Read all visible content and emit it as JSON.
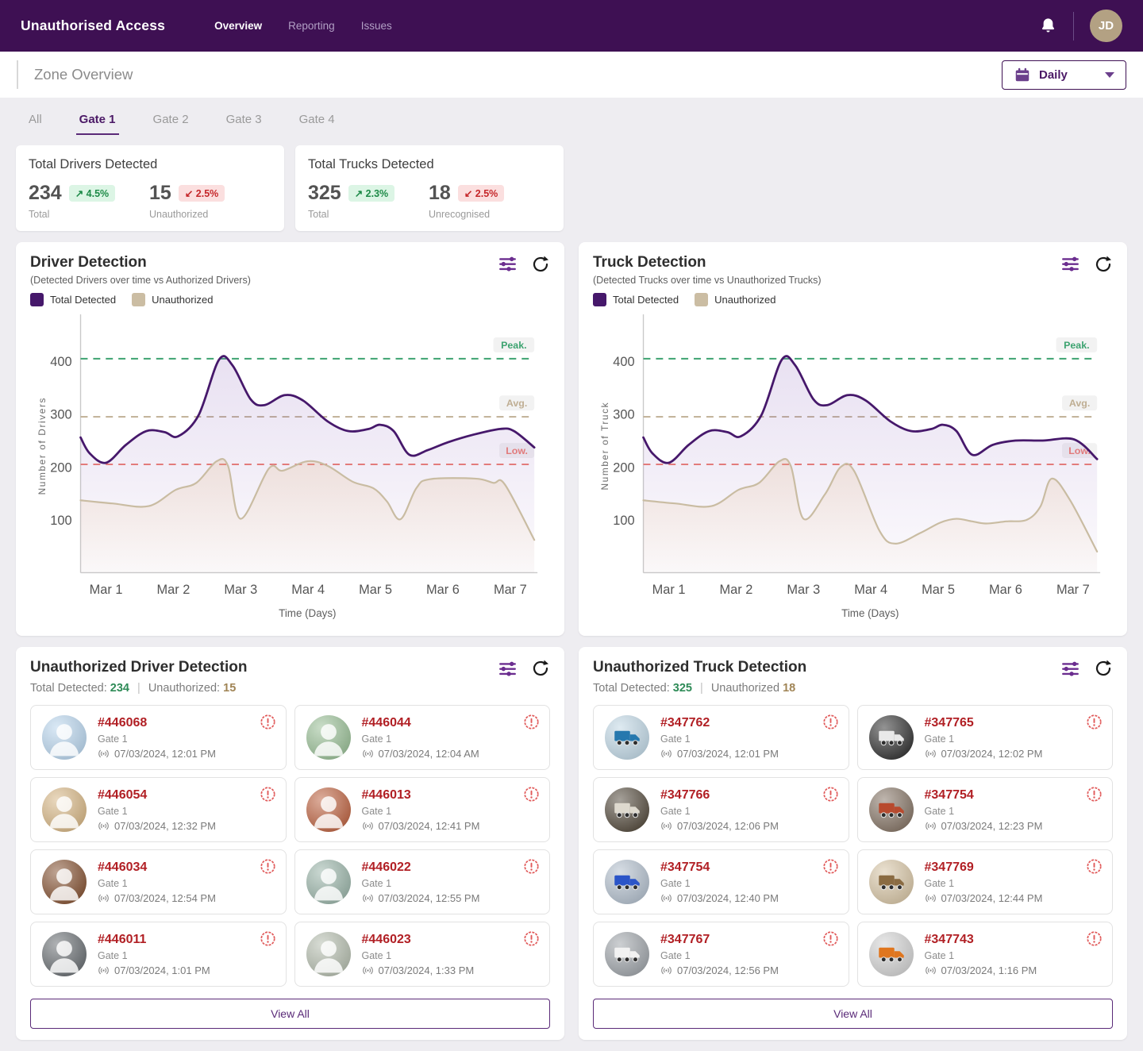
{
  "colors": {
    "navbar": "#3e1053",
    "accent_purple": "#5a2a78",
    "positive_green": "#1d8a47",
    "negative_red": "#c5272a",
    "entry_id_red": "#b11f24"
  },
  "navbar": {
    "title": "Unauthorised Access",
    "links": [
      {
        "label": "Overview"
      },
      {
        "label": "Reporting"
      },
      {
        "label": "Issues"
      }
    ],
    "avatar_initials": "JD"
  },
  "zone": {
    "title": "Zone Overview",
    "period_selector": {
      "value": "Daily"
    }
  },
  "tabs": [
    {
      "label": "All"
    },
    {
      "label": "Gate 1"
    },
    {
      "label": "Gate 2"
    },
    {
      "label": "Gate 3"
    },
    {
      "label": "Gate 4"
    }
  ],
  "active_tab": "Gate 1",
  "stats": [
    {
      "title": "Total Drivers Detected",
      "metrics": [
        {
          "value": "234",
          "delta": "4.5%",
          "direction": "up",
          "label": "Total"
        },
        {
          "value": "15",
          "delta": "2.5%",
          "direction": "down",
          "label": "Unauthorized"
        }
      ]
    },
    {
      "title": "Total Trucks Detected",
      "metrics": [
        {
          "value": "325",
          "delta": "2.3%",
          "direction": "up",
          "label": "Total"
        },
        {
          "value": "18",
          "delta": "2.5%",
          "direction": "down",
          "label": "Unrecognised"
        }
      ]
    }
  ],
  "charts": [
    {
      "title": "Driver Detection",
      "subtitle": "(Detected Drivers over time vs Authorized Drivers)",
      "legend": [
        {
          "label": "Total Detected",
          "color": "#46186b"
        },
        {
          "label": "Unauthorized",
          "color": "#cbbda3"
        }
      ]
    },
    {
      "title": "Truck Detection",
      "subtitle": "(Detected Trucks over time vs Unauthorized Trucks)",
      "legend": [
        {
          "label": "Total Detected",
          "color": "#46186b"
        },
        {
          "label": "Unauthorized",
          "color": "#cbbda3"
        }
      ]
    }
  ],
  "chart_data": [
    {
      "type": "line",
      "title": "Driver Detection",
      "xlabel": "Time (Days)",
      "ylabel": "Number of Drivers",
      "x_ticks": [
        "Mar 1",
        "Mar 2",
        "Mar 3",
        "Mar 4",
        "Mar 5",
        "Mar 6",
        "Mar 7"
      ],
      "y_ticks": [
        100,
        200,
        300,
        400
      ],
      "ylim": [
        0,
        480
      ],
      "x_tick_span": [
        0.056,
        0.947
      ],
      "grid": false,
      "legend_position": "top-left",
      "thresholds": [
        {
          "label": "Peak.",
          "value": 405,
          "color": "#3da370"
        },
        {
          "label": "Avg.",
          "value": 295,
          "color": "#bfae93"
        },
        {
          "label": "Low.",
          "value": 205,
          "color": "#ee7f74"
        }
      ],
      "series": [
        {
          "name": "Total Detected",
          "color": "#46186b",
          "fill": "#8257b5",
          "points": [
            [
              0,
              256
            ],
            [
              0.02,
              226
            ],
            [
              0.056,
              208
            ],
            [
              0.1,
              242
            ],
            [
              0.145,
              268
            ],
            [
              0.185,
              266
            ],
            [
              0.215,
              258
            ],
            [
              0.26,
              298
            ],
            [
              0.305,
              403
            ],
            [
              0.335,
              392
            ],
            [
              0.375,
              328
            ],
            [
              0.405,
              317
            ],
            [
              0.45,
              336
            ],
            [
              0.49,
              326
            ],
            [
              0.545,
              286
            ],
            [
              0.59,
              268
            ],
            [
              0.635,
              272
            ],
            [
              0.66,
              280
            ],
            [
              0.69,
              268
            ],
            [
              0.725,
              223
            ],
            [
              0.765,
              232
            ],
            [
              0.81,
              247
            ],
            [
              0.865,
              261
            ],
            [
              0.925,
              272
            ],
            [
              0.955,
              268
            ],
            [
              1,
              237
            ]
          ]
        },
        {
          "name": "Unauthorized",
          "color": "#c9bca2",
          "fill": "#eec48a",
          "points": [
            [
              0,
              137
            ],
            [
              0.07,
              131
            ],
            [
              0.15,
              126
            ],
            [
              0.21,
              157
            ],
            [
              0.255,
              170
            ],
            [
              0.3,
              211
            ],
            [
              0.325,
              202
            ],
            [
              0.353,
              102
            ],
            [
              0.415,
              197
            ],
            [
              0.445,
              193
            ],
            [
              0.5,
              211
            ],
            [
              0.545,
              202
            ],
            [
              0.6,
              172
            ],
            [
              0.645,
              160
            ],
            [
              0.675,
              135
            ],
            [
              0.705,
              101
            ],
            [
              0.74,
              160
            ],
            [
              0.77,
              177
            ],
            [
              0.87,
              178
            ],
            [
              0.91,
              170
            ],
            [
              0.935,
              167
            ],
            [
              1,
              62
            ]
          ]
        }
      ]
    },
    {
      "type": "line",
      "title": "Truck Detection",
      "xlabel": "Time (Days)",
      "ylabel": "Number of Truck",
      "x_ticks": [
        "Mar 1",
        "Mar 2",
        "Mar 3",
        "Mar 4",
        "Mar 5",
        "Mar 6",
        "Mar 7"
      ],
      "y_ticks": [
        100,
        200,
        300,
        400
      ],
      "ylim": [
        0,
        480
      ],
      "x_tick_span": [
        0.056,
        0.947
      ],
      "grid": false,
      "legend_position": "top-left",
      "thresholds": [
        {
          "label": "Peak.",
          "value": 405,
          "color": "#3da370"
        },
        {
          "label": "Avg.",
          "value": 295,
          "color": "#bfae93"
        },
        {
          "label": "Low.",
          "value": 205,
          "color": "#ee7f74"
        }
      ],
      "series": [
        {
          "name": "Total Detected",
          "color": "#46186b",
          "fill": "#8257b5",
          "points": [
            [
              0,
              256
            ],
            [
              0.02,
              226
            ],
            [
              0.056,
              208
            ],
            [
              0.1,
              242
            ],
            [
              0.145,
              268
            ],
            [
              0.185,
              266
            ],
            [
              0.215,
              258
            ],
            [
              0.26,
              298
            ],
            [
              0.305,
              403
            ],
            [
              0.335,
              392
            ],
            [
              0.375,
              328
            ],
            [
              0.405,
              317
            ],
            [
              0.45,
              336
            ],
            [
              0.49,
              326
            ],
            [
              0.545,
              286
            ],
            [
              0.59,
              268
            ],
            [
              0.635,
              272
            ],
            [
              0.66,
              280
            ],
            [
              0.69,
              268
            ],
            [
              0.725,
              223
            ],
            [
              0.77,
              242
            ],
            [
              0.82,
              250
            ],
            [
              0.88,
              250
            ],
            [
              0.95,
              252
            ],
            [
              1,
              215
            ]
          ]
        },
        {
          "name": "Unauthorized",
          "color": "#c9bca2",
          "fill": "#eec48a",
          "points": [
            [
              0,
              137
            ],
            [
              0.07,
              131
            ],
            [
              0.15,
              126
            ],
            [
              0.21,
              157
            ],
            [
              0.255,
              170
            ],
            [
              0.3,
              211
            ],
            [
              0.325,
              202
            ],
            [
              0.353,
              102
            ],
            [
              0.4,
              148
            ],
            [
              0.435,
              200
            ],
            [
              0.465,
              192
            ],
            [
              0.52,
              80
            ],
            [
              0.555,
              55
            ],
            [
              0.61,
              75
            ],
            [
              0.655,
              95
            ],
            [
              0.69,
              102
            ],
            [
              0.725,
              97
            ],
            [
              0.755,
              93
            ],
            [
              0.8,
              97
            ],
            [
              0.845,
              100
            ],
            [
              0.875,
              125
            ],
            [
              0.9,
              178
            ],
            [
              0.94,
              138
            ],
            [
              1,
              40
            ]
          ]
        }
      ]
    }
  ],
  "lists": [
    {
      "title": "Unauthorized Driver Detection",
      "kind": "driver",
      "summary": {
        "total_label": "Total Detected:",
        "total_value": "234",
        "divider": "|",
        "unauthorized_label": "Unauthorized:",
        "unauthorized_value": "15"
      },
      "entries": [
        {
          "id": "#446068",
          "gate": "Gate 1",
          "timestamp": "07/03/2024, 12:01 PM",
          "avatar": {
            "kind": "person",
            "bg": "#bcd7ee"
          }
        },
        {
          "id": "#446044",
          "gate": "Gate 1",
          "timestamp": "07/03/2024, 12:04 AM",
          "avatar": {
            "kind": "person",
            "bg": "#9ec29b"
          }
        },
        {
          "id": "#446054",
          "gate": "Gate 1",
          "timestamp": "07/03/2024, 12:32 PM",
          "avatar": {
            "kind": "person",
            "bg": "#d8b98a"
          }
        },
        {
          "id": "#446013",
          "gate": "Gate 1",
          "timestamp": "07/03/2024, 12:41 PM",
          "avatar": {
            "kind": "person",
            "bg": "#c06a4a"
          }
        },
        {
          "id": "#446034",
          "gate": "Gate 1",
          "timestamp": "07/03/2024, 12:54 PM",
          "avatar": {
            "kind": "person",
            "bg": "#8a5a3c"
          }
        },
        {
          "id": "#446022",
          "gate": "Gate 1",
          "timestamp": "07/03/2024, 12:55 PM",
          "avatar": {
            "kind": "person",
            "bg": "#9fb8ad"
          }
        },
        {
          "id": "#446011",
          "gate": "Gate 1",
          "timestamp": "07/03/2024, 1:01 PM",
          "avatar": {
            "kind": "person",
            "bg": "#6f7478"
          }
        },
        {
          "id": "#446023",
          "gate": "Gate 1",
          "timestamp": "07/03/2024, 1:33 PM",
          "avatar": {
            "kind": "person",
            "bg": "#b8c0b2"
          }
        }
      ],
      "view_all_label": "View All"
    },
    {
      "title": "Unauthorized Truck Detection",
      "kind": "truck",
      "summary": {
        "total_label": "Total Detected:",
        "total_value": "325",
        "divider": "|",
        "unauthorized_label": "Unauthorized",
        "unauthorized_value": "18"
      },
      "entries": [
        {
          "id": "#347762",
          "gate": "Gate 1",
          "timestamp": "07/03/2024, 12:01 PM",
          "avatar": {
            "kind": "truck",
            "bg": "#c3d9e6",
            "fg": "#2678ae"
          }
        },
        {
          "id": "#347765",
          "gate": "Gate 1",
          "timestamp": "07/03/2024, 12:02 PM",
          "avatar": {
            "kind": "truck",
            "bg": "#3b3b3b",
            "fg": "#e9e9e9"
          }
        },
        {
          "id": "#347766",
          "gate": "Gate 1",
          "timestamp": "07/03/2024, 12:06 PM",
          "avatar": {
            "kind": "truck",
            "bg": "#5c5346",
            "fg": "#ded9ce"
          }
        },
        {
          "id": "#347754",
          "gate": "Gate 1",
          "timestamp": "07/03/2024, 12:23 PM",
          "avatar": {
            "kind": "truck",
            "bg": "#8a7a6c",
            "fg": "#b84a2e"
          }
        },
        {
          "id": "#347754",
          "gate": "Gate 1",
          "timestamp": "07/03/2024, 12:40 PM",
          "avatar": {
            "kind": "truck",
            "bg": "#b6c2cf",
            "fg": "#2b55c8"
          }
        },
        {
          "id": "#347769",
          "gate": "Gate 1",
          "timestamp": "07/03/2024, 12:44 PM",
          "avatar": {
            "kind": "truck",
            "bg": "#d9c8aa",
            "fg": "#8a6b42"
          }
        },
        {
          "id": "#347767",
          "gate": "Gate 1",
          "timestamp": "07/03/2024, 12:56 PM",
          "avatar": {
            "kind": "truck",
            "bg": "#a3a8ad",
            "fg": "#f2f2f2"
          }
        },
        {
          "id": "#347743",
          "gate": "Gate 1",
          "timestamp": "07/03/2024, 1:16 PM",
          "avatar": {
            "kind": "truck",
            "bg": "#d4d4d4",
            "fg": "#e0761e"
          }
        }
      ],
      "view_all_label": "View All"
    }
  ]
}
